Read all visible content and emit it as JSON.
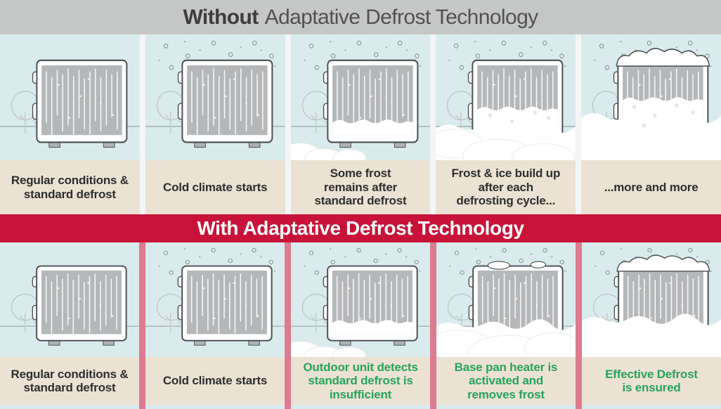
{
  "top_header": {
    "prefix": "Without",
    "rest": "Adaptative Defrost Technology"
  },
  "mid_banner": {
    "label": "With Adaptative Defrost Technology"
  },
  "colors": {
    "header_bg": "#c5c6c6",
    "header_prefix": "#3d3d3d",
    "header_rest": "#515151",
    "sky": "#d9ebed",
    "caption_bg": "#ece2d3",
    "caption_text": "#2e2e2e",
    "caption_green": "#27a35c",
    "banner_bg": "#c81237",
    "banner_text": "#ffffff",
    "divider_top": "#f4f6f6",
    "divider_bottom": "#dd7b90",
    "footer_strip": "#d9ebed",
    "unit_outline": "#4a4e50",
    "unit_coil": "#b5b7b9",
    "tree_line": "#c3c8ca",
    "ground_line": "#a0a5a7",
    "snow": "#ffffff"
  },
  "top_row": {
    "panels": [
      {
        "caption": "Regular conditions &\nstandard defrost",
        "scene": "clear"
      },
      {
        "caption": "Cold climate starts",
        "scene": "snowing"
      },
      {
        "caption": "Some frost\nremains after\nstandard defrost",
        "scene": "frost-some"
      },
      {
        "caption": "Frost & ice build up\nafter each\ndefrosting cycle...",
        "scene": "frost-buildup"
      },
      {
        "caption": "...more and more",
        "scene": "frost-heavy"
      }
    ]
  },
  "bottom_row": {
    "panels": [
      {
        "caption": "Regular conditions &\nstandard defrost",
        "scene": "clear",
        "caption_color": "dark"
      },
      {
        "caption": "Cold climate starts",
        "scene": "snowing",
        "caption_color": "dark"
      },
      {
        "caption": "Outdoor unit detects\nstandard defrost is\ninsufficient",
        "scene": "frost-some",
        "caption_color": "green"
      },
      {
        "caption": "Base pan heater is\nactivated and\nremoves frost",
        "scene": "heater-clearing",
        "caption_color": "green"
      },
      {
        "caption": "Effective Defrost\nis ensured",
        "scene": "defrost-ensured",
        "caption_color": "green"
      }
    ]
  }
}
